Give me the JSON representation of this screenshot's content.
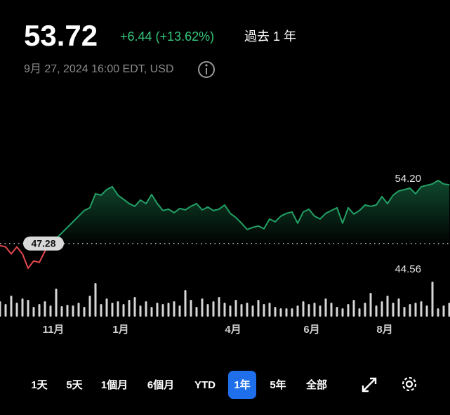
{
  "header": {
    "price": "53.72",
    "change": "+6.44 (+13.62%)",
    "period": "過去 1 年",
    "timestamp": "9月 27, 2024 16:00 EDT, USD"
  },
  "chart_data": {
    "type": "line",
    "categories": [
      null,
      null,
      null,
      null,
      null,
      null,
      null,
      null,
      null,
      null,
      "11月",
      null,
      null,
      null,
      null,
      null,
      null,
      null,
      null,
      null,
      null,
      null,
      "1月",
      null,
      null,
      null,
      null,
      null,
      null,
      null,
      null,
      null,
      null,
      null,
      null,
      null,
      null,
      null,
      null,
      null,
      null,
      null,
      "4月",
      null,
      null,
      null,
      null,
      null,
      null,
      null,
      null,
      null,
      null,
      null,
      null,
      null,
      "6月",
      null,
      null,
      null,
      null,
      null,
      null,
      null,
      null,
      null,
      null,
      null,
      null,
      "8月",
      null,
      null,
      null,
      null,
      null,
      null,
      null,
      null,
      null,
      null,
      null
    ],
    "values": [
      47.05,
      46.9,
      46.13,
      46.9,
      46.13,
      44.56,
      45.36,
      45.2,
      46.43,
      47.36,
      47.82,
      48.43,
      49.05,
      49.66,
      50.28,
      50.9,
      51.2,
      52.74,
      52.59,
      53.2,
      53.51,
      52.59,
      52.13,
      51.66,
      51.36,
      52.05,
      51.66,
      52.66,
      51.66,
      50.9,
      51.05,
      50.66,
      51.13,
      50.97,
      51.36,
      51.66,
      50.97,
      51.28,
      50.9,
      51.05,
      51.51,
      50.59,
      50.13,
      49.51,
      48.82,
      49.05,
      49.2,
      48.9,
      49.97,
      49.66,
      50.28,
      50.59,
      50.74,
      49.51,
      50.74,
      51.05,
      50.28,
      49.97,
      50.59,
      50.9,
      51.2,
      49.51,
      51.2,
      50.51,
      50.9,
      51.51,
      51.36,
      51.51,
      52.43,
      51.66,
      52.59,
      53.05,
      53.2,
      53.36,
      52.74,
      53.51,
      53.67,
      53.82,
      54.2,
      53.82,
      53.72
    ],
    "volume": [
      22,
      18,
      30,
      20,
      26,
      24,
      14,
      18,
      22,
      16,
      40,
      15,
      17,
      16,
      20,
      14,
      30,
      48,
      18,
      26,
      20,
      22,
      18,
      24,
      28,
      16,
      22,
      14,
      20,
      18,
      20,
      22,
      16,
      38,
      24,
      14,
      26,
      18,
      22,
      28,
      20,
      16,
      24,
      18,
      20,
      16,
      24,
      18,
      20,
      14,
      12,
      12,
      12,
      16,
      22,
      18,
      20,
      16,
      26,
      20,
      14,
      12,
      18,
      24,
      12,
      20,
      34,
      16,
      22,
      30,
      20,
      26,
      14,
      18,
      20,
      22,
      16,
      50,
      12,
      16,
      20
    ],
    "up_color": "#22a065",
    "down_color": "#e5484d",
    "previous_close": {
      "value": 47.28,
      "label": "47.28"
    },
    "high": {
      "value": 54.2,
      "label": "54.20"
    },
    "low": {
      "value": 44.56,
      "label": "44.56"
    }
  },
  "ranges": [
    "1天",
    "5天",
    "1個月",
    "6個月",
    "YTD",
    "1年",
    "5年",
    "全部"
  ],
  "selected_range": 5
}
